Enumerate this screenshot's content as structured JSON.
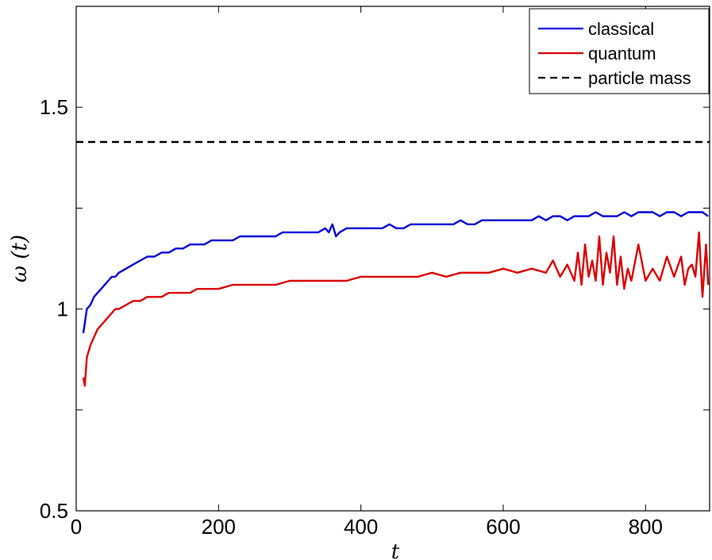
{
  "chart_data": {
    "type": "line",
    "title": "",
    "xlabel": "t",
    "ylabel": "ω (t)",
    "xlim": [
      0,
      890
    ],
    "ylim": [
      0.5,
      1.75
    ],
    "xticks": [
      0,
      200,
      400,
      600,
      800
    ],
    "yticks": [
      0.5,
      1,
      1.5
    ],
    "yminor_ticks": [
      0.75,
      1.25
    ],
    "grid": false,
    "legend_position": "top-right",
    "series": [
      {
        "name": "classical",
        "color": "#0000dd",
        "style": "solid",
        "x": [
          10,
          15,
          20,
          25,
          30,
          35,
          40,
          45,
          50,
          55,
          60,
          70,
          80,
          90,
          100,
          110,
          120,
          130,
          140,
          150,
          160,
          170,
          180,
          190,
          200,
          210,
          220,
          230,
          240,
          250,
          260,
          270,
          280,
          290,
          300,
          310,
          320,
          330,
          340,
          350,
          355,
          360,
          365,
          370,
          380,
          390,
          400,
          410,
          420,
          430,
          440,
          450,
          460,
          470,
          480,
          490,
          500,
          510,
          520,
          530,
          540,
          550,
          560,
          570,
          580,
          590,
          600,
          610,
          620,
          630,
          640,
          650,
          660,
          670,
          680,
          690,
          700,
          710,
          720,
          730,
          740,
          750,
          760,
          770,
          780,
          790,
          800,
          810,
          820,
          830,
          840,
          850,
          860,
          870,
          880,
          888
        ],
        "y": [
          0.94,
          1.0,
          1.01,
          1.03,
          1.04,
          1.05,
          1.06,
          1.07,
          1.08,
          1.08,
          1.09,
          1.1,
          1.11,
          1.12,
          1.13,
          1.13,
          1.14,
          1.14,
          1.15,
          1.15,
          1.16,
          1.16,
          1.16,
          1.17,
          1.17,
          1.17,
          1.17,
          1.18,
          1.18,
          1.18,
          1.18,
          1.18,
          1.18,
          1.19,
          1.19,
          1.19,
          1.19,
          1.19,
          1.19,
          1.2,
          1.19,
          1.21,
          1.18,
          1.19,
          1.2,
          1.2,
          1.2,
          1.2,
          1.2,
          1.2,
          1.21,
          1.2,
          1.2,
          1.21,
          1.21,
          1.21,
          1.21,
          1.21,
          1.21,
          1.21,
          1.22,
          1.21,
          1.21,
          1.22,
          1.22,
          1.22,
          1.22,
          1.22,
          1.22,
          1.22,
          1.22,
          1.23,
          1.22,
          1.23,
          1.23,
          1.22,
          1.23,
          1.23,
          1.23,
          1.24,
          1.23,
          1.23,
          1.23,
          1.24,
          1.23,
          1.24,
          1.24,
          1.24,
          1.23,
          1.24,
          1.24,
          1.23,
          1.24,
          1.24,
          1.24,
          1.23
        ]
      },
      {
        "name": "quantum",
        "color": "#dd0000",
        "style": "solid",
        "x": [
          10,
          12,
          15,
          20,
          25,
          30,
          35,
          40,
          45,
          50,
          55,
          60,
          70,
          80,
          90,
          100,
          110,
          120,
          130,
          140,
          150,
          160,
          170,
          180,
          190,
          200,
          220,
          240,
          260,
          280,
          300,
          320,
          340,
          360,
          380,
          400,
          420,
          440,
          460,
          480,
          500,
          520,
          540,
          560,
          580,
          600,
          620,
          640,
          660,
          670,
          680,
          690,
          700,
          705,
          710,
          715,
          720,
          725,
          730,
          735,
          740,
          745,
          750,
          755,
          760,
          765,
          770,
          775,
          780,
          790,
          800,
          810,
          820,
          830,
          840,
          850,
          855,
          860,
          865,
          870,
          875,
          880,
          885,
          888
        ],
        "y": [
          0.83,
          0.81,
          0.88,
          0.91,
          0.93,
          0.95,
          0.96,
          0.97,
          0.98,
          0.99,
          1.0,
          1.0,
          1.01,
          1.02,
          1.02,
          1.03,
          1.03,
          1.03,
          1.04,
          1.04,
          1.04,
          1.04,
          1.05,
          1.05,
          1.05,
          1.05,
          1.06,
          1.06,
          1.06,
          1.06,
          1.07,
          1.07,
          1.07,
          1.07,
          1.07,
          1.08,
          1.08,
          1.08,
          1.08,
          1.08,
          1.09,
          1.08,
          1.09,
          1.09,
          1.09,
          1.1,
          1.09,
          1.1,
          1.09,
          1.12,
          1.08,
          1.11,
          1.07,
          1.14,
          1.06,
          1.16,
          1.08,
          1.12,
          1.07,
          1.18,
          1.06,
          1.14,
          1.09,
          1.18,
          1.06,
          1.13,
          1.05,
          1.1,
          1.07,
          1.16,
          1.07,
          1.1,
          1.07,
          1.13,
          1.08,
          1.13,
          1.06,
          1.1,
          1.11,
          1.08,
          1.19,
          1.03,
          1.16,
          1.06
        ]
      },
      {
        "name": "particle mass",
        "color": "#000000",
        "style": "dashed",
        "x": [
          0,
          890
        ],
        "y": [
          1.414,
          1.414
        ]
      }
    ]
  }
}
